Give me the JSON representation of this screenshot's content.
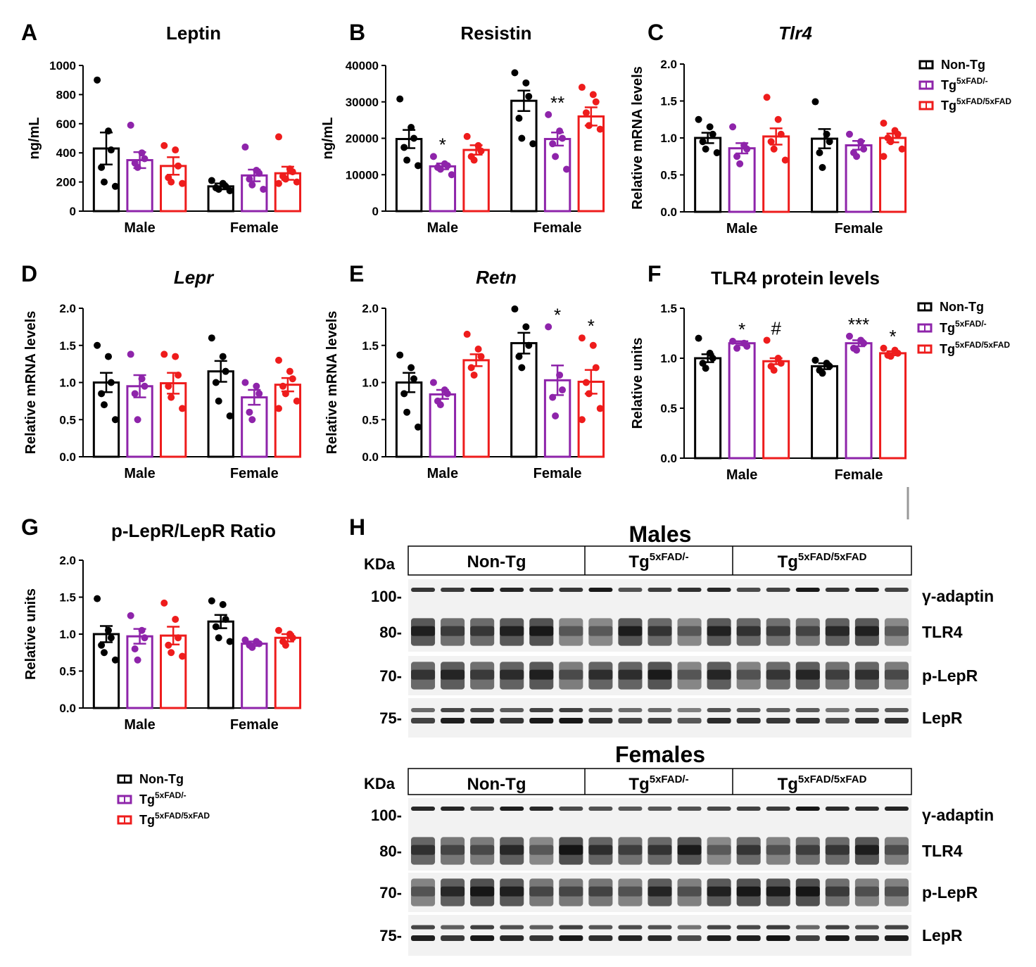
{
  "colors": {
    "non_tg": "#000000",
    "tg_het": "#8e24aa",
    "tg_hom": "#ee1c1c"
  },
  "groups": [
    "Male",
    "Female"
  ],
  "legend": [
    {
      "key": "non_tg",
      "label": "Non-Tg",
      "sup": ""
    },
    {
      "key": "tg_het",
      "label": "Tg",
      "sup": "5xFAD/-"
    },
    {
      "key": "tg_hom",
      "label": "Tg",
      "sup": "5xFAD/5xFAD"
    }
  ],
  "chart_data": [
    {
      "id": "A",
      "type": "bar",
      "title": "Leptin",
      "title_italic": false,
      "ylabel": "ng/mL",
      "ylim": [
        0,
        1000
      ],
      "yticks": [
        0,
        200,
        400,
        600,
        800,
        1000
      ],
      "categories": [
        "Male",
        "Female"
      ],
      "series": [
        {
          "name": "Non-Tg",
          "means": [
            430,
            170
          ],
          "sem": [
            110,
            20
          ],
          "points": [
            [
              900,
              550,
              420,
              300,
              200,
              170
            ],
            [
              210,
              190,
              170,
              160,
              150,
              140
            ]
          ],
          "sig": [
            "",
            ""
          ]
        },
        {
          "name": "Tg5xFAD/-",
          "means": [
            350,
            245
          ],
          "sem": [
            55,
            40
          ],
          "points": [
            [
              590,
              400,
              360,
              330,
              300
            ],
            [
              440,
              280,
              260,
              220,
              180,
              150
            ]
          ],
          "sig": [
            "",
            ""
          ]
        },
        {
          "name": "Tg5xFAD/5xFAD",
          "means": [
            310,
            260
          ],
          "sem": [
            60,
            45
          ],
          "points": [
            [
              450,
              420,
              310,
              230,
              200,
              190
            ],
            [
              510,
              290,
              270,
              240,
              220,
              200,
              190
            ]
          ],
          "sig": [
            "",
            ""
          ]
        }
      ]
    },
    {
      "id": "B",
      "type": "bar",
      "title": "Resistin",
      "title_italic": false,
      "ylabel": "ng/mL",
      "ylim": [
        0,
        40000
      ],
      "yticks": [
        0,
        10000,
        20000,
        30000,
        40000
      ],
      "categories": [
        "Male",
        "Female"
      ],
      "series": [
        {
          "name": "Non-Tg",
          "means": [
            19800,
            30300
          ],
          "sem": [
            2500,
            2800
          ],
          "points": [
            [
              30800,
              23000,
              20000,
              17500,
              14000,
              12500
            ],
            [
              38000,
              35200,
              31500,
              25500,
              20000,
              18500
            ]
          ],
          "sig": [
            "",
            ""
          ]
        },
        {
          "name": "Tg5xFAD/-",
          "means": [
            12300,
            19800
          ],
          "sem": [
            800,
            1800
          ],
          "points": [
            [
              15000,
              13000,
              12500,
              12000,
              11500,
              10000
            ],
            [
              26500,
              22000,
              20000,
              18500,
              15000,
              11500
            ]
          ],
          "sig": [
            "*",
            "**"
          ]
        },
        {
          "name": "Tg5xFAD/5xFAD",
          "means": [
            16800,
            26000
          ],
          "sem": [
            1300,
            2500
          ],
          "points": [
            [
              20500,
              18000,
              16500,
              15000,
              14000
            ],
            [
              34000,
              32000,
              30000,
              27000,
              23500,
              22500
            ]
          ],
          "sig": [
            "",
            ""
          ]
        }
      ]
    },
    {
      "id": "C",
      "type": "bar",
      "title": "Tlr4",
      "title_italic": true,
      "ylabel": "Relative mRNA levels",
      "ylim": [
        0,
        2
      ],
      "yticks": [
        "0.0",
        "0.5",
        "1.0",
        "1.5",
        "2.0"
      ],
      "categories": [
        "Male",
        "Female"
      ],
      "series": [
        {
          "name": "Non-Tg",
          "means": [
            1.0,
            0.99
          ],
          "sem": [
            0.07,
            0.13
          ],
          "points": [
            [
              1.25,
              1.15,
              1.05,
              0.95,
              0.85,
              0.8
            ],
            [
              1.49,
              1.05,
              0.95,
              0.8,
              0.6
            ]
          ],
          "sig": [
            "",
            ""
          ]
        },
        {
          "name": "Tg5xFAD/-",
          "means": [
            0.86,
            0.9
          ],
          "sem": [
            0.07,
            0.06
          ],
          "points": [
            [
              1.15,
              0.9,
              0.85,
              0.75,
              0.65
            ],
            [
              1.05,
              0.95,
              0.85,
              0.8,
              0.75
            ]
          ],
          "sig": [
            "",
            ""
          ]
        },
        {
          "name": "Tg5xFAD/5xFAD",
          "means": [
            1.02,
            1.0
          ],
          "sem": [
            0.11,
            0.06
          ],
          "points": [
            [
              1.55,
              1.25,
              1.05,
              0.95,
              0.85,
              0.7
            ],
            [
              1.2,
              1.1,
              1.05,
              1.0,
              0.95,
              0.85,
              0.75
            ]
          ],
          "sig": [
            "",
            ""
          ]
        }
      ]
    },
    {
      "id": "D",
      "type": "bar",
      "title": "Lepr",
      "title_italic": true,
      "ylabel": "Relative mRNA levels",
      "ylim": [
        0,
        2
      ],
      "yticks": [
        "0.0",
        "0.5",
        "1.0",
        "1.5",
        "2.0"
      ],
      "categories": [
        "Male",
        "Female"
      ],
      "series": [
        {
          "name": "Non-Tg",
          "means": [
            1.0,
            1.15
          ],
          "sem": [
            0.13,
            0.14
          ],
          "points": [
            [
              1.5,
              1.35,
              1.0,
              0.85,
              0.7,
              0.5
            ],
            [
              1.6,
              1.35,
              1.15,
              1.0,
              0.75,
              0.55
            ]
          ],
          "sig": [
            "",
            ""
          ]
        },
        {
          "name": "Tg5xFAD/-",
          "means": [
            0.95,
            0.8
          ],
          "sem": [
            0.15,
            0.1
          ],
          "points": [
            [
              1.38,
              1.05,
              0.95,
              0.85,
              0.5
            ],
            [
              1.0,
              0.95,
              0.85,
              0.6,
              0.5
            ]
          ],
          "sig": [
            "",
            ""
          ]
        },
        {
          "name": "Tg5xFAD/5xFAD",
          "means": [
            0.99,
            0.97
          ],
          "sem": [
            0.14,
            0.09
          ],
          "points": [
            [
              1.38,
              1.35,
              1.1,
              0.95,
              0.8,
              0.65
            ],
            [
              1.3,
              1.15,
              1.05,
              0.95,
              0.85,
              0.75,
              0.65
            ]
          ],
          "sig": [
            "",
            ""
          ]
        }
      ]
    },
    {
      "id": "E",
      "type": "bar",
      "title": "Retn",
      "title_italic": true,
      "ylabel": "Relative mRNA levels",
      "ylim": [
        0,
        2
      ],
      "yticks": [
        "0.0",
        "0.5",
        "1.0",
        "1.5",
        "2.0"
      ],
      "categories": [
        "Male",
        "Female"
      ],
      "series": [
        {
          "name": "Non-Tg",
          "means": [
            1.0,
            1.53
          ],
          "sem": [
            0.13,
            0.14
          ],
          "points": [
            [
              1.37,
              1.2,
              1.05,
              0.85,
              0.6,
              0.4
            ],
            [
              1.99,
              1.75,
              1.5,
              1.35,
              1.2
            ]
          ],
          "sig": [
            "",
            ""
          ]
        },
        {
          "name": "Tg5xFAD/-",
          "means": [
            0.84,
            1.03
          ],
          "sem": [
            0.06,
            0.2
          ],
          "points": [
            [
              1.0,
              0.9,
              0.85,
              0.75,
              0.7
            ],
            [
              1.75,
              1.1,
              0.9,
              0.8,
              0.55
            ]
          ],
          "sig": [
            "",
            "*"
          ]
        },
        {
          "name": "Tg5xFAD/5xFAD",
          "means": [
            1.3,
            1.01
          ],
          "sem": [
            0.08,
            0.16
          ],
          "points": [
            [
              1.65,
              1.45,
              1.35,
              1.2,
              1.1
            ],
            [
              1.6,
              1.5,
              1.2,
              1.0,
              0.85,
              0.65,
              0.5
            ]
          ],
          "sig": [
            "",
            "*"
          ]
        }
      ]
    },
    {
      "id": "F",
      "type": "bar",
      "title": "TLR4 protein levels",
      "title_italic": false,
      "ylabel": "Relative units",
      "ylim": [
        0,
        1.5
      ],
      "yticks": [
        "0.0",
        "0.5",
        "1.0",
        "1.5"
      ],
      "categories": [
        "Male",
        "Female"
      ],
      "series": [
        {
          "name": "Non-Tg",
          "means": [
            1.0,
            0.92
          ],
          "sem": [
            0.04,
            0.03
          ],
          "points": [
            [
              1.2,
              1.05,
              1.0,
              0.95,
              0.9
            ],
            [
              0.98,
              0.95,
              0.92,
              0.88,
              0.85
            ]
          ],
          "sig": [
            "",
            ""
          ]
        },
        {
          "name": "Tg5xFAD/-",
          "means": [
            1.15,
            1.15
          ],
          "sem": [
            0.02,
            0.03
          ],
          "points": [
            [
              1.17,
              1.15,
              1.12,
              1.1
            ],
            [
              1.22,
              1.18,
              1.15,
              1.1,
              1.08
            ]
          ],
          "sig": [
            "*",
            "***"
          ]
        },
        {
          "name": "Tg5xFAD/5xFAD",
          "means": [
            0.97,
            1.05
          ],
          "sem": [
            0.03,
            0.02
          ],
          "points": [
            [
              1.18,
              1.0,
              0.95,
              0.92,
              0.88
            ],
            [
              1.1,
              1.08,
              1.05,
              1.03,
              1.02
            ]
          ],
          "sig": [
            "#",
            "*"
          ]
        }
      ]
    },
    {
      "id": "G",
      "type": "bar",
      "title": "p-LepR/LepR Ratio",
      "title_italic": false,
      "ylabel": "Relative units",
      "ylim": [
        0,
        2
      ],
      "yticks": [
        "0.0",
        "0.5",
        "1.0",
        "1.5",
        "2.0"
      ],
      "categories": [
        "Male",
        "Female"
      ],
      "series": [
        {
          "name": "Non-Tg",
          "means": [
            1.0,
            1.17
          ],
          "sem": [
            0.11,
            0.09
          ],
          "points": [
            [
              1.48,
              1.05,
              0.95,
              0.85,
              0.75,
              0.65
            ],
            [
              1.45,
              1.4,
              1.2,
              1.1,
              0.95,
              0.9
            ]
          ],
          "sig": [
            "",
            ""
          ]
        },
        {
          "name": "Tg5xFAD/-",
          "means": [
            0.97,
            0.87
          ],
          "sem": [
            0.1,
            0.03
          ],
          "points": [
            [
              1.25,
              1.05,
              0.95,
              0.8,
              0.65
            ],
            [
              0.92,
              0.9,
              0.87,
              0.85,
              0.82
            ]
          ],
          "sig": [
            "",
            ""
          ]
        },
        {
          "name": "Tg5xFAD/5xFAD",
          "means": [
            0.98,
            0.95
          ],
          "sem": [
            0.12,
            0.05
          ],
          "points": [
            [
              1.42,
              1.2,
              0.95,
              0.85,
              0.75,
              0.7
            ],
            [
              1.05,
              1.0,
              0.95,
              0.9,
              0.85
            ]
          ],
          "sig": [
            "",
            ""
          ]
        }
      ]
    }
  ],
  "blots": [
    {
      "title": "Males",
      "kda_label": "KDa",
      "groups": [
        {
          "label": "Non-Tg",
          "sup": "",
          "lanes": 6
        },
        {
          "label": "Tg",
          "sup": "5xFAD/-",
          "lanes": 5
        },
        {
          "label": "Tg",
          "sup": "5xFAD/5xFAD",
          "lanes": 6
        }
      ],
      "rows": [
        {
          "kda": "100-",
          "protein": "γ-adaptin"
        },
        {
          "kda": "80-",
          "protein": "TLR4"
        },
        {
          "kda": "70-",
          "protein": "p-LepR"
        },
        {
          "kda": "75-",
          "protein": "LepR"
        }
      ]
    },
    {
      "title": "Females",
      "kda_label": "KDa",
      "groups": [
        {
          "label": "Non-Tg",
          "sup": "",
          "lanes": 6
        },
        {
          "label": "Tg",
          "sup": "5xFAD/-",
          "lanes": 5
        },
        {
          "label": "Tg",
          "sup": "5xFAD/5xFAD",
          "lanes": 6
        }
      ],
      "rows": [
        {
          "kda": "100-",
          "protein": "γ-adaptin"
        },
        {
          "kda": "80-",
          "protein": "TLR4"
        },
        {
          "kda": "70-",
          "protein": "p-LepR"
        },
        {
          "kda": "75-",
          "protein": "LepR"
        }
      ]
    }
  ],
  "panel_h_label": "H"
}
